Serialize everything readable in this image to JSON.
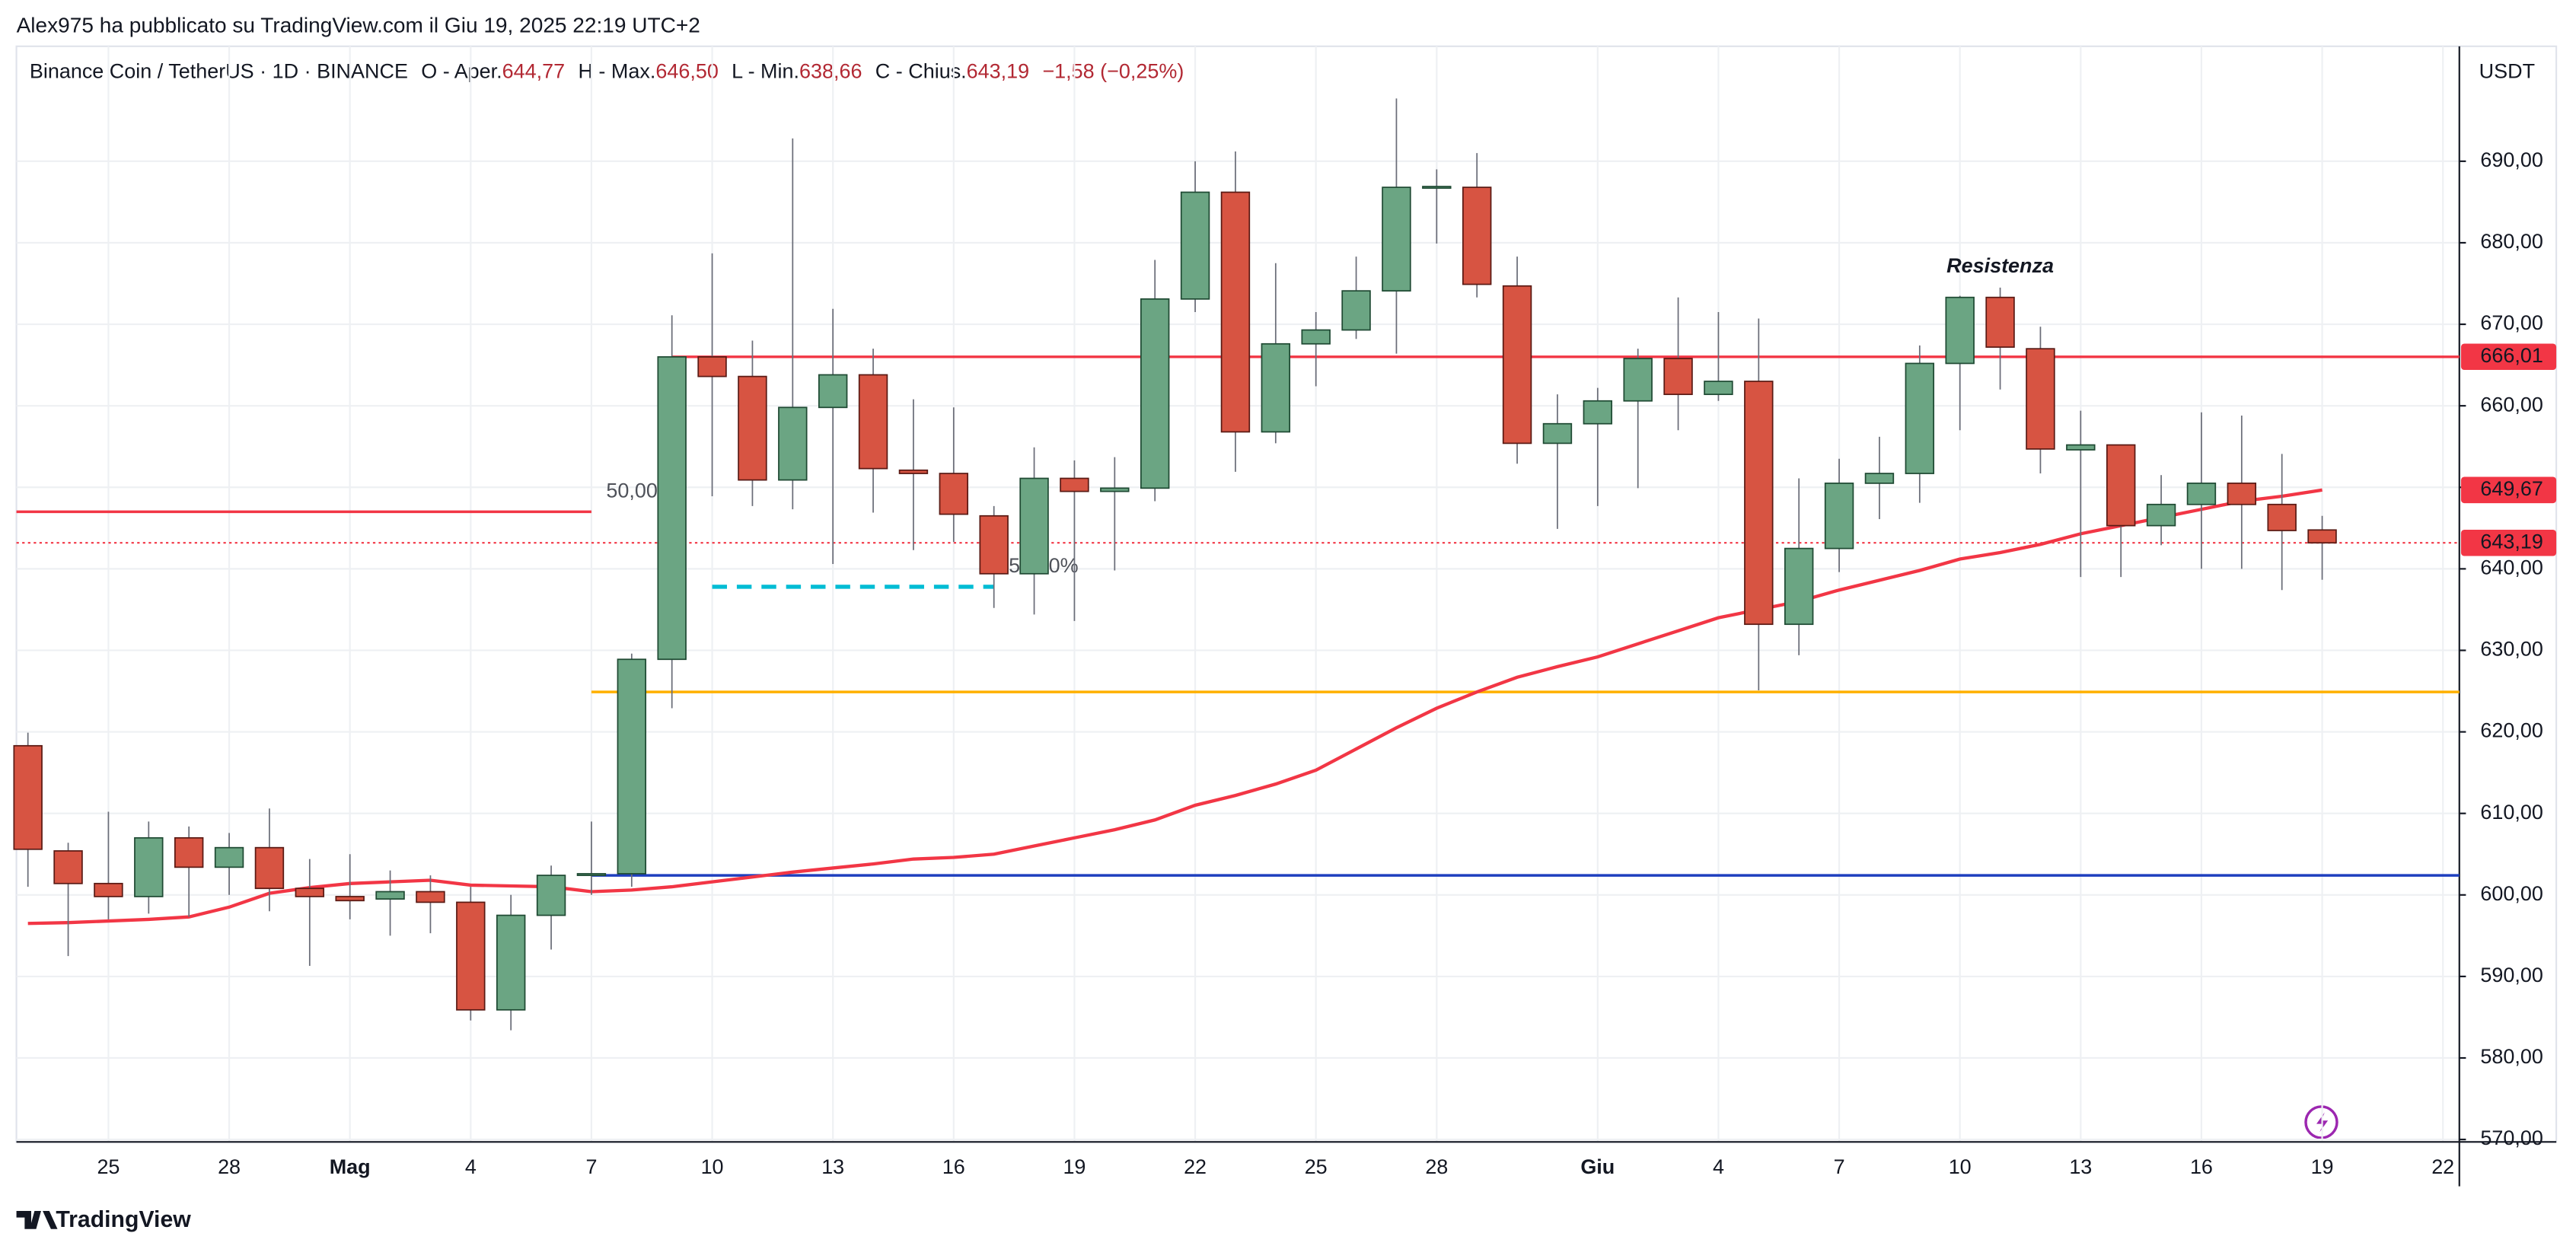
{
  "header": {
    "byline": "Alex975 ha pubblicato su TradingView.com il Giu 19, 2025 22:19 UTC+2",
    "symbol": "Binance Coin / TetherUS · 1D · BINANCE",
    "ohlc": [
      {
        "label": "O - Aper.",
        "value": "644,77"
      },
      {
        "label": "H - Max.",
        "value": "646,50"
      },
      {
        "label": "L - Min.",
        "value": "638,66"
      },
      {
        "label": "C - Chius.",
        "value": "643,19"
      }
    ],
    "change": "−1,58 (−0,25%)",
    "currency": "USDT"
  },
  "footer": {
    "brand": "TradingView"
  },
  "chart_data": {
    "type": "candlestick",
    "categories": [
      null,
      null,
      "25",
      null,
      null,
      "28",
      null,
      null,
      "Mag",
      null,
      null,
      "4",
      null,
      null,
      "7",
      null,
      null,
      "10",
      null,
      null,
      "13",
      null,
      null,
      "16",
      null,
      null,
      "19",
      null,
      null,
      "22",
      null,
      null,
      "25",
      null,
      null,
      "28",
      null,
      null,
      null,
      "Giu",
      null,
      null,
      "4",
      null,
      null,
      "7",
      null,
      null,
      "10",
      null,
      null,
      "13",
      null,
      null,
      "16",
      null,
      null,
      "19",
      null,
      null,
      "22"
    ],
    "open": [
      618.3,
      605.4,
      601.4,
      599.8,
      607,
      603.4,
      605.8,
      600.8,
      599.8,
      599.5,
      600.4,
      599.1,
      585.9,
      597.5,
      602.4,
      602.6,
      628.9,
      666,
      663.6,
      650.9,
      659.8,
      663.8,
      652.1,
      651.7,
      646.5,
      639.4,
      651.1,
      649.5,
      649.9,
      673.1,
      686.2,
      656.8,
      667.6,
      669.3,
      674.1,
      686.8,
      686.8,
      674.7,
      655.4,
      657.8,
      660.6,
      665.8,
      661.4,
      663,
      633.2,
      642.5,
      650.5,
      651.7,
      665.2,
      673.3,
      667,
      654.6,
      655.2,
      645.3,
      647.9,
      650.5,
      647.9,
      644.77,
      null,
      null,
      null
    ],
    "high": [
      619.9,
      606.4,
      610.2,
      609,
      608.4,
      607.6,
      610.6,
      604.4,
      605,
      603,
      602.4,
      601,
      600,
      603.6,
      609,
      629.6,
      671.1,
      678.7,
      668,
      692.8,
      671.9,
      667,
      660.8,
      659.8,
      647.7,
      654.9,
      653.3,
      653.7,
      677.9,
      690,
      691.2,
      677.5,
      671.5,
      678.3,
      697.7,
      689,
      691,
      678.3,
      661.4,
      662.2,
      667,
      673.3,
      671.5,
      670.7,
      651.1,
      653.5,
      656.2,
      667.4,
      673.5,
      674.5,
      669.7,
      659.4,
      655.2,
      651.5,
      659.2,
      658.8,
      654.1,
      646.5,
      null,
      null,
      null
    ],
    "low": [
      601,
      592.5,
      597,
      597.7,
      597.3,
      600,
      598,
      591.3,
      597,
      595,
      595.3,
      584.6,
      583.4,
      593.3,
      600,
      601,
      622.9,
      648.9,
      647.7,
      647.3,
      640.6,
      646.9,
      642.3,
      643.3,
      635.2,
      634.4,
      633.6,
      639.8,
      648.3,
      671.5,
      651.9,
      655.4,
      662.4,
      668.2,
      666.4,
      679.9,
      673.3,
      652.9,
      644.9,
      647.7,
      649.9,
      657,
      660.6,
      625.1,
      629.4,
      639.6,
      646.1,
      648.1,
      657,
      662,
      651.7,
      639,
      639,
      642.9,
      640,
      640,
      637.4,
      638.66,
      null,
      null,
      null
    ],
    "close": [
      605.6,
      601.4,
      599.8,
      607,
      603.4,
      605.8,
      600.8,
      599.8,
      599.3,
      600.4,
      599.1,
      585.9,
      597.5,
      602.4,
      602.6,
      628.9,
      666,
      663.6,
      650.9,
      659.8,
      663.8,
      652.3,
      651.7,
      646.7,
      639.4,
      651.1,
      649.5,
      649.9,
      673.1,
      686.2,
      656.8,
      667.6,
      669.3,
      674.1,
      686.8,
      686.9,
      674.9,
      655.4,
      657.8,
      660.6,
      665.8,
      661.4,
      663,
      633.2,
      642.5,
      650.5,
      651.7,
      665.2,
      673.3,
      667.2,
      654.7,
      655.2,
      645.3,
      647.9,
      650.5,
      647.9,
      644.7,
      643.19,
      null,
      null,
      null
    ],
    "up_color": "#6ba583",
    "down_color": "#d75442",
    "series": [
      {
        "color": "#f23645",
        "values": [
          596.5,
          596.6,
          596.8,
          597,
          597.3,
          598.5,
          600.2,
          600.9,
          601.4,
          601.6,
          601.8,
          601.2,
          601.1,
          601,
          600.4,
          600.6,
          601,
          601.6,
          602.2,
          602.8,
          603.3,
          603.8,
          604.4,
          604.6,
          605,
          606,
          607,
          608,
          609.2,
          611,
          612.2,
          613.6,
          615.3,
          617.9,
          620.5,
          622.9,
          624.9,
          626.7,
          628,
          629.2,
          630.8,
          632.4,
          634,
          635,
          636,
          637.4,
          638.6,
          639.8,
          641.2,
          642,
          643,
          644.3,
          645.3,
          646.3,
          647.3,
          648.3,
          648.9,
          649.67,
          null,
          null,
          null
        ]
      }
    ],
    "levels": [
      {
        "value": 666.01,
        "color": "#f23645",
        "from": 16,
        "label": "666,01"
      },
      {
        "value": 647,
        "color": "#f23645",
        "from": -1,
        "to": 14,
        "label": "50,00"
      },
      {
        "value": 637.8,
        "color": "#00bcd4",
        "from": 17,
        "to": 24,
        "dashed": true,
        "label": "50,00%"
      },
      {
        "value": 624.9,
        "color": "#ffb000",
        "from": 14
      },
      {
        "value": 602.4,
        "color": "#1e3fbf",
        "from": 14
      },
      {
        "value": 643.19,
        "color": "#f23645",
        "dotted": true,
        "label": "643,19"
      }
    ],
    "price_labels": [
      {
        "value": 649.67,
        "label": "649,67"
      }
    ],
    "annotation": {
      "text": "Resistenza",
      "x": 49,
      "y": 677
    },
    "ylim": [
      569.7,
      704.1
    ],
    "yticks": [
      {
        "value": 570,
        "label": "570,00"
      },
      {
        "value": 580,
        "label": "580,00"
      },
      {
        "value": 590,
        "label": "590,00"
      },
      {
        "value": 600,
        "label": "600,00"
      },
      {
        "value": 610,
        "label": "610,00"
      },
      {
        "value": 620,
        "label": "620,00"
      },
      {
        "value": 630,
        "label": "630,00"
      },
      {
        "value": 640,
        "label": "640,00"
      },
      {
        "value": 650,
        "label": "650,00"
      },
      {
        "value": 660,
        "label": "660,00"
      },
      {
        "value": 670,
        "label": "670,00"
      },
      {
        "value": 680,
        "label": "680,00"
      },
      {
        "value": 690,
        "label": "690,00"
      }
    ],
    "grid": true
  }
}
